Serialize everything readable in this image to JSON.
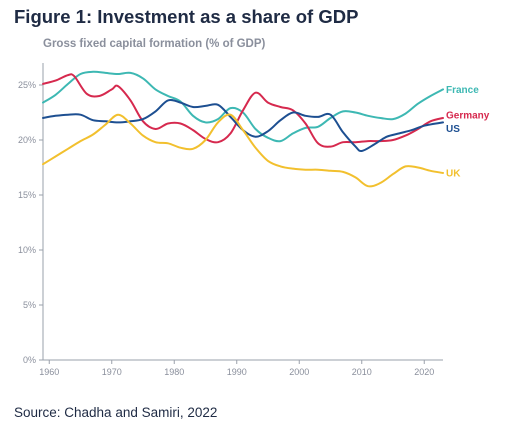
{
  "figure": {
    "title": "Figure 1: Investment as a share of GDP",
    "subtitle": "Gross fixed capital formation (% of GDP)",
    "source": "Source: Chadha and Samiri, 2022"
  },
  "chart_data": {
    "type": "line",
    "title": "Figure 1: Investment as a share of GDP",
    "subtitle": "Gross fixed capital formation (% of GDP)",
    "xlabel": "",
    "ylabel": "",
    "xlim": [
      1959,
      2023
    ],
    "ylim": [
      0,
      27
    ],
    "x_ticks": [
      1960,
      1970,
      1980,
      1990,
      2000,
      2010,
      2020
    ],
    "y_ticks": [
      0,
      5,
      10,
      15,
      20,
      25
    ],
    "y_tick_labels": [
      "0%",
      "5%",
      "10%",
      "15%",
      "20%",
      "25%"
    ],
    "x_tick_labels": [
      "1960",
      "1970",
      "1980",
      "1990",
      "2000",
      "2010",
      "2020"
    ],
    "grid": "none",
    "legend": "series labels at right end of lines",
    "series": [
      {
        "name": "France",
        "color": "#3db8b3",
        "points": [
          [
            1959,
            23.4
          ],
          [
            1961,
            24.1
          ],
          [
            1963,
            25.1
          ],
          [
            1965,
            26.0
          ],
          [
            1967,
            26.2
          ],
          [
            1969,
            26.1
          ],
          [
            1971,
            26.0
          ],
          [
            1973,
            26.1
          ],
          [
            1975,
            25.6
          ],
          [
            1977,
            24.6
          ],
          [
            1979,
            24.0
          ],
          [
            1981,
            23.5
          ],
          [
            1983,
            22.2
          ],
          [
            1985,
            21.6
          ],
          [
            1987,
            21.9
          ],
          [
            1989,
            22.9
          ],
          [
            1991,
            22.5
          ],
          [
            1993,
            21.0
          ],
          [
            1995,
            20.2
          ],
          [
            1997,
            19.9
          ],
          [
            1999,
            20.6
          ],
          [
            2001,
            21.1
          ],
          [
            2003,
            21.2
          ],
          [
            2005,
            22.0
          ],
          [
            2007,
            22.6
          ],
          [
            2009,
            22.5
          ],
          [
            2011,
            22.2
          ],
          [
            2013,
            22.0
          ],
          [
            2015,
            21.9
          ],
          [
            2017,
            22.4
          ],
          [
            2019,
            23.3
          ],
          [
            2021,
            24.0
          ],
          [
            2023,
            24.6
          ]
        ]
      },
      {
        "name": "Germany",
        "color": "#d6294e",
        "points": [
          [
            1959,
            25.1
          ],
          [
            1961,
            25.4
          ],
          [
            1963,
            25.9
          ],
          [
            1964,
            25.8
          ],
          [
            1966,
            24.2
          ],
          [
            1968,
            24.0
          ],
          [
            1970,
            24.6
          ],
          [
            1971,
            24.9
          ],
          [
            1973,
            23.6
          ],
          [
            1975,
            21.7
          ],
          [
            1977,
            21.0
          ],
          [
            1979,
            21.5
          ],
          [
            1981,
            21.5
          ],
          [
            1983,
            20.9
          ],
          [
            1985,
            20.1
          ],
          [
            1987,
            19.8
          ],
          [
            1989,
            20.6
          ],
          [
            1991,
            22.7
          ],
          [
            1993,
            24.3
          ],
          [
            1995,
            23.4
          ],
          [
            1997,
            23.0
          ],
          [
            1999,
            22.7
          ],
          [
            2001,
            21.5
          ],
          [
            2003,
            19.7
          ],
          [
            2005,
            19.4
          ],
          [
            2007,
            19.8
          ],
          [
            2009,
            19.8
          ],
          [
            2011,
            19.9
          ],
          [
            2013,
            19.9
          ],
          [
            2015,
            20.0
          ],
          [
            2017,
            20.4
          ],
          [
            2019,
            21.0
          ],
          [
            2021,
            21.7
          ],
          [
            2023,
            22.0
          ]
        ]
      },
      {
        "name": "US",
        "color": "#1d4f91",
        "points": [
          [
            1959,
            22.0
          ],
          [
            1961,
            22.2
          ],
          [
            1963,
            22.3
          ],
          [
            1965,
            22.3
          ],
          [
            1967,
            21.8
          ],
          [
            1969,
            21.7
          ],
          [
            1971,
            21.6
          ],
          [
            1973,
            21.7
          ],
          [
            1975,
            21.9
          ],
          [
            1977,
            22.6
          ],
          [
            1979,
            23.6
          ],
          [
            1981,
            23.4
          ],
          [
            1983,
            23.0
          ],
          [
            1985,
            23.1
          ],
          [
            1987,
            23.2
          ],
          [
            1989,
            22.1
          ],
          [
            1991,
            20.9
          ],
          [
            1993,
            20.3
          ],
          [
            1995,
            20.8
          ],
          [
            1997,
            21.8
          ],
          [
            1999,
            22.5
          ],
          [
            2001,
            22.2
          ],
          [
            2003,
            22.1
          ],
          [
            2005,
            22.3
          ],
          [
            2007,
            20.7
          ],
          [
            2009,
            19.4
          ],
          [
            2010,
            19.0
          ],
          [
            2012,
            19.6
          ],
          [
            2014,
            20.3
          ],
          [
            2016,
            20.6
          ],
          [
            2018,
            20.9
          ],
          [
            2020,
            21.3
          ],
          [
            2023,
            21.6
          ]
        ]
      },
      {
        "name": "UK",
        "color": "#f2c02e",
        "points": [
          [
            1959,
            17.8
          ],
          [
            1961,
            18.5
          ],
          [
            1963,
            19.2
          ],
          [
            1965,
            19.9
          ],
          [
            1967,
            20.5
          ],
          [
            1969,
            21.4
          ],
          [
            1971,
            22.3
          ],
          [
            1973,
            21.5
          ],
          [
            1975,
            20.4
          ],
          [
            1977,
            19.8
          ],
          [
            1979,
            19.7
          ],
          [
            1981,
            19.3
          ],
          [
            1983,
            19.2
          ],
          [
            1985,
            20.0
          ],
          [
            1987,
            21.6
          ],
          [
            1989,
            22.3
          ],
          [
            1991,
            20.9
          ],
          [
            1993,
            19.3
          ],
          [
            1995,
            18.1
          ],
          [
            1997,
            17.6
          ],
          [
            1999,
            17.4
          ],
          [
            2001,
            17.3
          ],
          [
            2003,
            17.3
          ],
          [
            2005,
            17.2
          ],
          [
            2007,
            17.1
          ],
          [
            2009,
            16.6
          ],
          [
            2011,
            15.8
          ],
          [
            2013,
            16.1
          ],
          [
            2015,
            16.9
          ],
          [
            2017,
            17.6
          ],
          [
            2019,
            17.5
          ],
          [
            2021,
            17.2
          ],
          [
            2023,
            17.0
          ]
        ]
      }
    ]
  }
}
